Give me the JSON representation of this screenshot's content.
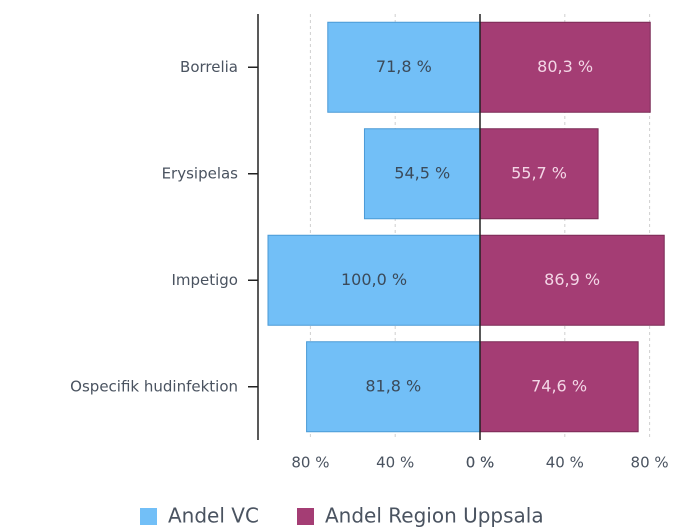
{
  "chart_data": {
    "type": "butterfly",
    "categories": [
      "Borrelia",
      "Erysipelas",
      "Impetigo",
      "Ospecifik hudinfektion"
    ],
    "series": [
      {
        "name": "Andel VC",
        "color": "#72bff7",
        "values": [
          71.8,
          54.5,
          100.0,
          81.8
        ],
        "value_labels": [
          "71,8 %",
          "54,5 %",
          "100,0 %",
          "81,8 %"
        ],
        "xlim": [
          100,
          0
        ],
        "xticks": [
          {
            "value": 80,
            "label": "80 %"
          },
          {
            "value": 40,
            "label": "40 %"
          },
          {
            "value": 0,
            "label": "0 %"
          }
        ]
      },
      {
        "name": "Andel Region Uppsala",
        "color": "#a43d74",
        "values": [
          80.3,
          55.7,
          86.9,
          74.6
        ],
        "value_labels": [
          "80,3 %",
          "55,7 %",
          "86,9 %",
          "74,6 %"
        ],
        "xlim": [
          0,
          88
        ],
        "xticks": [
          {
            "value": 0,
            "label": "0 %"
          },
          {
            "value": 40,
            "label": "40 %"
          },
          {
            "value": 80,
            "label": "80 %"
          }
        ]
      }
    ],
    "grid": true
  }
}
